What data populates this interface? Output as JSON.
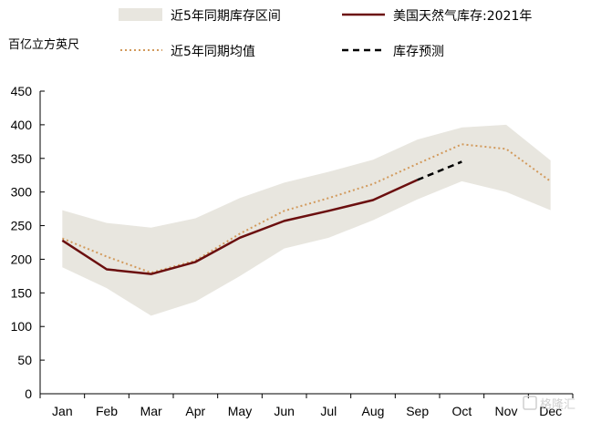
{
  "unit_label": "百亿立方英尺",
  "watermark": "格隆汇",
  "chart_data": {
    "type": "line",
    "categories": [
      "Jan",
      "Feb",
      "Mar",
      "Apr",
      "May",
      "Jun",
      "Jul",
      "Aug",
      "Sep",
      "Oct",
      "Nov",
      "Dec"
    ],
    "ylim": [
      0,
      450
    ],
    "yticks": [
      0,
      50,
      100,
      150,
      200,
      250,
      300,
      350,
      400,
      450
    ],
    "grid": false,
    "legend_position": "top",
    "series": [
      {
        "name": "近5年同期库存区间",
        "kind": "range",
        "color": "#e8e6df",
        "low": [
          188,
          157,
          116,
          137,
          175,
          216,
          232,
          258,
          289,
          316,
          300,
          273
        ],
        "high": [
          273,
          254,
          247,
          261,
          291,
          314,
          330,
          348,
          378,
          396,
          400,
          347
        ]
      },
      {
        "name": "美国天然气库存:2021年",
        "kind": "line",
        "color": "#6b0f0f",
        "values": [
          228,
          185,
          178,
          196,
          232,
          257,
          272,
          288,
          318,
          null,
          null,
          null
        ]
      },
      {
        "name": "近5年同期均值",
        "kind": "dotted",
        "color": "#d29a5c",
        "values": [
          231,
          204,
          180,
          198,
          238,
          272,
          291,
          312,
          342,
          371,
          364,
          316
        ]
      },
      {
        "name": "库存预测",
        "kind": "dashed",
        "color": "#000000",
        "x": [
          "Sep",
          "Oct"
        ],
        "values": [
          318,
          345
        ]
      }
    ]
  }
}
